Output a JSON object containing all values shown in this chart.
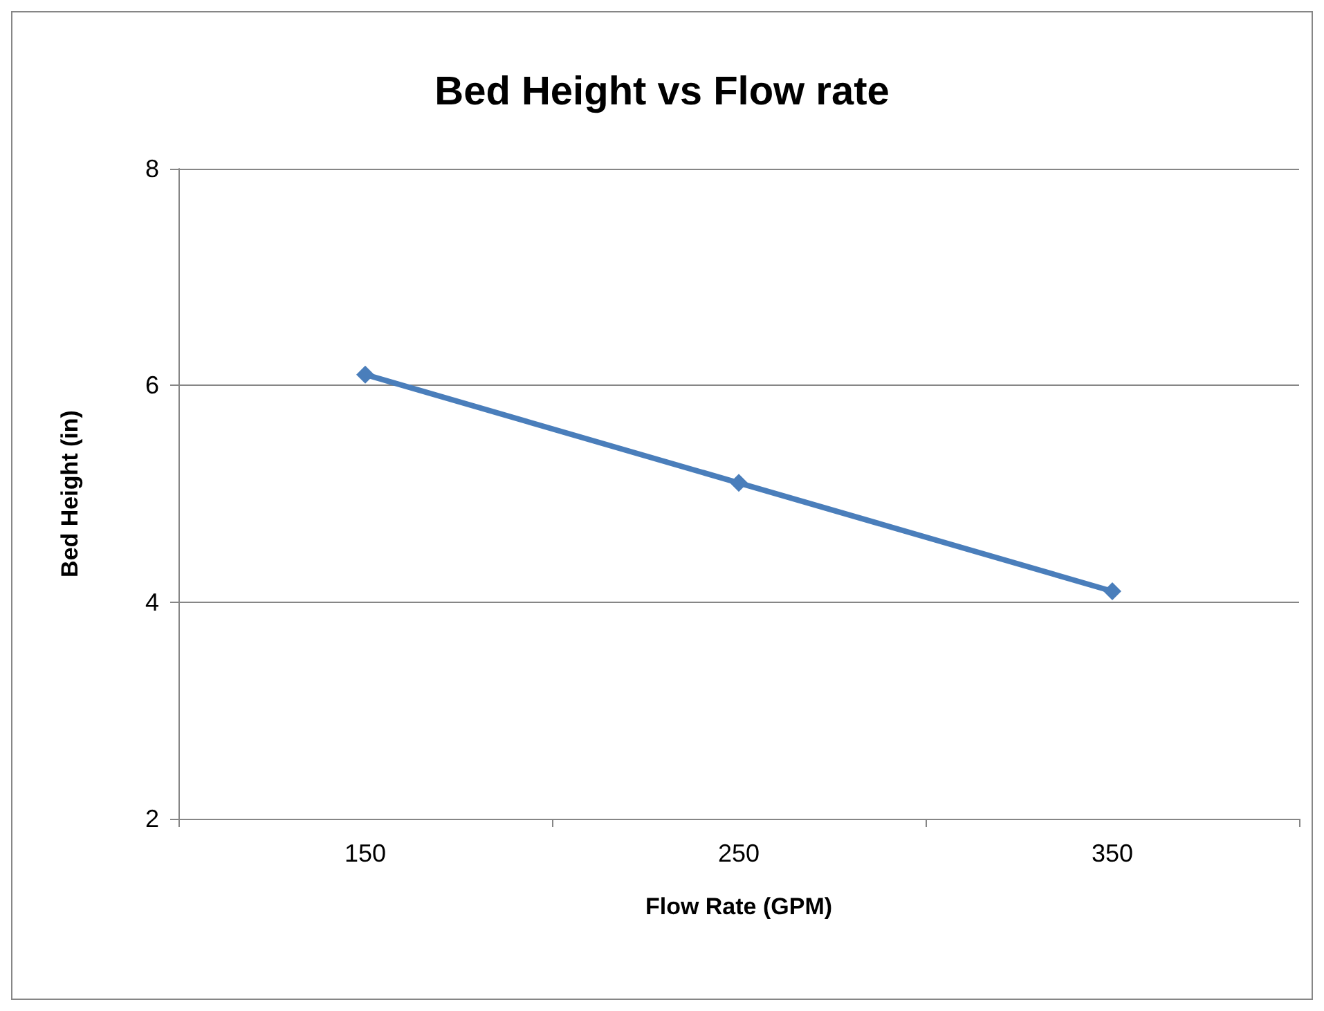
{
  "chart_data": {
    "type": "line",
    "title": "Bed Height vs Flow rate",
    "xlabel": "Flow Rate (GPM)",
    "ylabel": "Bed Height (in)",
    "categories": [
      "150",
      "250",
      "350"
    ],
    "series": [
      {
        "color": "#4a7ebb",
        "values": [
          6.1,
          5.1,
          4.1
        ]
      }
    ],
    "ylim": [
      2,
      8
    ],
    "yticks": [
      2,
      4,
      6,
      8
    ],
    "grid": "y",
    "marker": "diamond",
    "line_style": "solid"
  }
}
